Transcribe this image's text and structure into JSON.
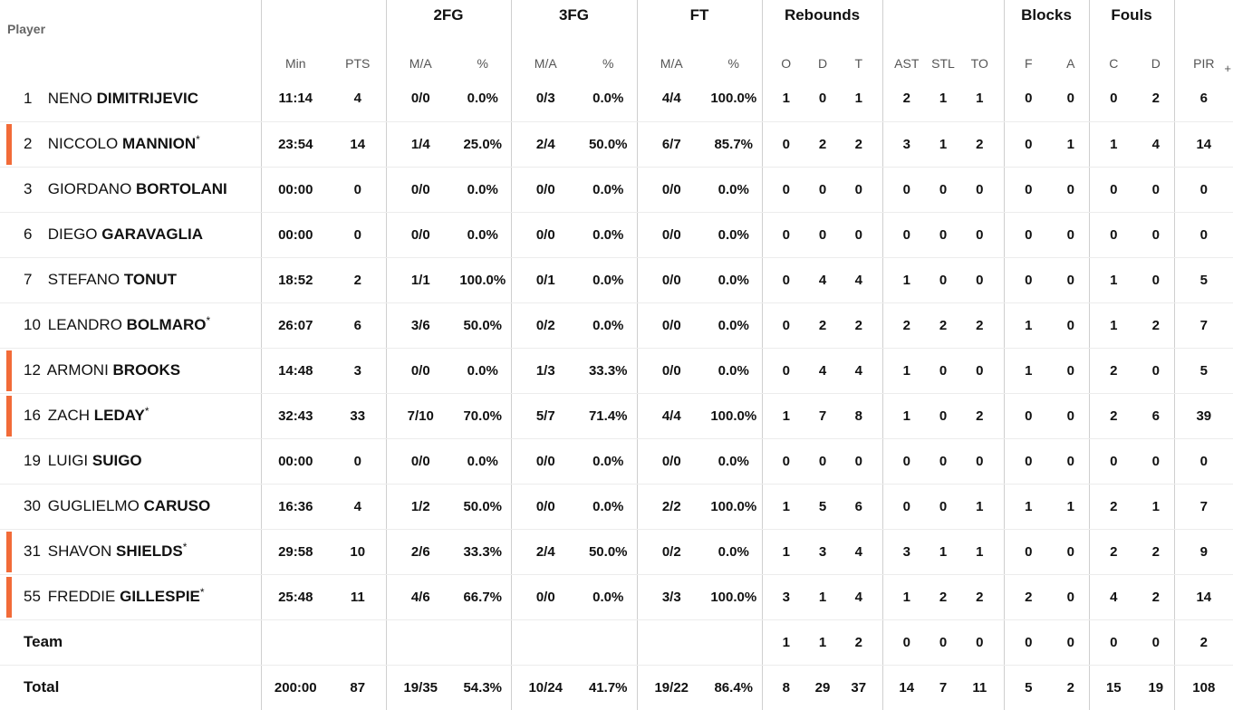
{
  "header": {
    "groups": {
      "fg2": "2FG",
      "fg3": "3FG",
      "ft": "FT",
      "rebounds": "Rebounds",
      "blocks": "Blocks",
      "fouls": "Fouls"
    },
    "columns": {
      "player": "Player",
      "min": "Min",
      "pts": "PTS",
      "fg2_ma": "M/A",
      "fg2_pct": "%",
      "fg3_ma": "M/A",
      "fg3_pct": "%",
      "ft_ma": "M/A",
      "ft_pct": "%",
      "reb_o": "O",
      "reb_d": "D",
      "reb_t": "T",
      "ast": "AST",
      "stl": "STL",
      "to": "TO",
      "blk_f": "F",
      "blk_a": "A",
      "foul_c": "C",
      "foul_d": "D",
      "pir": "PIR",
      "more": "+"
    }
  },
  "players": [
    {
      "num": "1",
      "first": "NENO",
      "last": "DIMITRIJEVIC",
      "star": "",
      "marked": false,
      "min": "11:14",
      "pts": "4",
      "fg2_ma": "0/0",
      "fg2_pct": "0.0%",
      "fg3_ma": "0/3",
      "fg3_pct": "0.0%",
      "ft_ma": "4/4",
      "ft_pct": "100.0%",
      "reb_o": "1",
      "reb_d": "0",
      "reb_t": "1",
      "ast": "2",
      "stl": "1",
      "to": "1",
      "blk_f": "0",
      "blk_a": "0",
      "foul_c": "0",
      "foul_d": "2",
      "pir": "6"
    },
    {
      "num": "2",
      "first": "NICCOLO",
      "last": "MANNION",
      "star": "*",
      "marked": true,
      "min": "23:54",
      "pts": "14",
      "fg2_ma": "1/4",
      "fg2_pct": "25.0%",
      "fg3_ma": "2/4",
      "fg3_pct": "50.0%",
      "ft_ma": "6/7",
      "ft_pct": "85.7%",
      "reb_o": "0",
      "reb_d": "2",
      "reb_t": "2",
      "ast": "3",
      "stl": "1",
      "to": "2",
      "blk_f": "0",
      "blk_a": "1",
      "foul_c": "1",
      "foul_d": "4",
      "pir": "14"
    },
    {
      "num": "3",
      "first": "GIORDANO",
      "last": "BORTOLANI",
      "star": "",
      "marked": false,
      "min": "00:00",
      "pts": "0",
      "fg2_ma": "0/0",
      "fg2_pct": "0.0%",
      "fg3_ma": "0/0",
      "fg3_pct": "0.0%",
      "ft_ma": "0/0",
      "ft_pct": "0.0%",
      "reb_o": "0",
      "reb_d": "0",
      "reb_t": "0",
      "ast": "0",
      "stl": "0",
      "to": "0",
      "blk_f": "0",
      "blk_a": "0",
      "foul_c": "0",
      "foul_d": "0",
      "pir": "0"
    },
    {
      "num": "6",
      "first": "DIEGO",
      "last": "GARAVAGLIA",
      "star": "",
      "marked": false,
      "min": "00:00",
      "pts": "0",
      "fg2_ma": "0/0",
      "fg2_pct": "0.0%",
      "fg3_ma": "0/0",
      "fg3_pct": "0.0%",
      "ft_ma": "0/0",
      "ft_pct": "0.0%",
      "reb_o": "0",
      "reb_d": "0",
      "reb_t": "0",
      "ast": "0",
      "stl": "0",
      "to": "0",
      "blk_f": "0",
      "blk_a": "0",
      "foul_c": "0",
      "foul_d": "0",
      "pir": "0"
    },
    {
      "num": "7",
      "first": "STEFANO",
      "last": "TONUT",
      "star": "",
      "marked": false,
      "min": "18:52",
      "pts": "2",
      "fg2_ma": "1/1",
      "fg2_pct": "100.0%",
      "fg3_ma": "0/1",
      "fg3_pct": "0.0%",
      "ft_ma": "0/0",
      "ft_pct": "0.0%",
      "reb_o": "0",
      "reb_d": "4",
      "reb_t": "4",
      "ast": "1",
      "stl": "0",
      "to": "0",
      "blk_f": "0",
      "blk_a": "0",
      "foul_c": "1",
      "foul_d": "0",
      "pir": "5"
    },
    {
      "num": "10",
      "first": "LEANDRO",
      "last": "BOLMARO",
      "star": "*",
      "marked": false,
      "min": "26:07",
      "pts": "6",
      "fg2_ma": "3/6",
      "fg2_pct": "50.0%",
      "fg3_ma": "0/2",
      "fg3_pct": "0.0%",
      "ft_ma": "0/0",
      "ft_pct": "0.0%",
      "reb_o": "0",
      "reb_d": "2",
      "reb_t": "2",
      "ast": "2",
      "stl": "2",
      "to": "2",
      "blk_f": "1",
      "blk_a": "0",
      "foul_c": "1",
      "foul_d": "2",
      "pir": "7"
    },
    {
      "num": "12",
      "first": "ARMONI",
      "last": "BROOKS",
      "star": "",
      "marked": true,
      "min": "14:48",
      "pts": "3",
      "fg2_ma": "0/0",
      "fg2_pct": "0.0%",
      "fg3_ma": "1/3",
      "fg3_pct": "33.3%",
      "ft_ma": "0/0",
      "ft_pct": "0.0%",
      "reb_o": "0",
      "reb_d": "4",
      "reb_t": "4",
      "ast": "1",
      "stl": "0",
      "to": "0",
      "blk_f": "1",
      "blk_a": "0",
      "foul_c": "2",
      "foul_d": "0",
      "pir": "5"
    },
    {
      "num": "16",
      "first": "ZACH",
      "last": "LEDAY",
      "star": "*",
      "marked": true,
      "min": "32:43",
      "pts": "33",
      "fg2_ma": "7/10",
      "fg2_pct": "70.0%",
      "fg3_ma": "5/7",
      "fg3_pct": "71.4%",
      "ft_ma": "4/4",
      "ft_pct": "100.0%",
      "reb_o": "1",
      "reb_d": "7",
      "reb_t": "8",
      "ast": "1",
      "stl": "0",
      "to": "2",
      "blk_f": "0",
      "blk_a": "0",
      "foul_c": "2",
      "foul_d": "6",
      "pir": "39"
    },
    {
      "num": "19",
      "first": "LUIGI",
      "last": "SUIGO",
      "star": "",
      "marked": false,
      "min": "00:00",
      "pts": "0",
      "fg2_ma": "0/0",
      "fg2_pct": "0.0%",
      "fg3_ma": "0/0",
      "fg3_pct": "0.0%",
      "ft_ma": "0/0",
      "ft_pct": "0.0%",
      "reb_o": "0",
      "reb_d": "0",
      "reb_t": "0",
      "ast": "0",
      "stl": "0",
      "to": "0",
      "blk_f": "0",
      "blk_a": "0",
      "foul_c": "0",
      "foul_d": "0",
      "pir": "0"
    },
    {
      "num": "30",
      "first": "GUGLIELMO",
      "last": "CARUSO",
      "star": "",
      "marked": false,
      "min": "16:36",
      "pts": "4",
      "fg2_ma": "1/2",
      "fg2_pct": "50.0%",
      "fg3_ma": "0/0",
      "fg3_pct": "0.0%",
      "ft_ma": "2/2",
      "ft_pct": "100.0%",
      "reb_o": "1",
      "reb_d": "5",
      "reb_t": "6",
      "ast": "0",
      "stl": "0",
      "to": "1",
      "blk_f": "1",
      "blk_a": "1",
      "foul_c": "2",
      "foul_d": "1",
      "pir": "7"
    },
    {
      "num": "31",
      "first": "SHAVON",
      "last": "SHIELDS",
      "star": "*",
      "marked": true,
      "min": "29:58",
      "pts": "10",
      "fg2_ma": "2/6",
      "fg2_pct": "33.3%",
      "fg3_ma": "2/4",
      "fg3_pct": "50.0%",
      "ft_ma": "0/2",
      "ft_pct": "0.0%",
      "reb_o": "1",
      "reb_d": "3",
      "reb_t": "4",
      "ast": "3",
      "stl": "1",
      "to": "1",
      "blk_f": "0",
      "blk_a": "0",
      "foul_c": "2",
      "foul_d": "2",
      "pir": "9"
    },
    {
      "num": "55",
      "first": "FREDDIE",
      "last": "GILLESPIE",
      "star": "*",
      "marked": true,
      "min": "25:48",
      "pts": "11",
      "fg2_ma": "4/6",
      "fg2_pct": "66.7%",
      "fg3_ma": "0/0",
      "fg3_pct": "0.0%",
      "ft_ma": "3/3",
      "ft_pct": "100.0%",
      "reb_o": "3",
      "reb_d": "1",
      "reb_t": "4",
      "ast": "1",
      "stl": "2",
      "to": "2",
      "blk_f": "2",
      "blk_a": "0",
      "foul_c": "4",
      "foul_d": "2",
      "pir": "14"
    }
  ],
  "team": {
    "label": "Team",
    "min": "",
    "pts": "",
    "fg2_ma": "",
    "fg2_pct": "",
    "fg3_ma": "",
    "fg3_pct": "",
    "ft_ma": "",
    "ft_pct": "",
    "reb_o": "1",
    "reb_d": "1",
    "reb_t": "2",
    "ast": "0",
    "stl": "0",
    "to": "0",
    "blk_f": "0",
    "blk_a": "0",
    "foul_c": "0",
    "foul_d": "0",
    "pir": "2"
  },
  "total": {
    "label": "Total",
    "min": "200:00",
    "pts": "87",
    "fg2_ma": "19/35",
    "fg2_pct": "54.3%",
    "fg3_ma": "10/24",
    "fg3_pct": "41.7%",
    "ft_ma": "19/22",
    "ft_pct": "86.4%",
    "reb_o": "8",
    "reb_d": "29",
    "reb_t": "37",
    "ast": "14",
    "stl": "7",
    "to": "11",
    "blk_f": "5",
    "blk_a": "2",
    "foul_c": "15",
    "foul_d": "19",
    "pir": "108"
  },
  "colors": {
    "marker": "#f26b38",
    "divider": "#cfcfcf",
    "row_line": "#ececec"
  }
}
